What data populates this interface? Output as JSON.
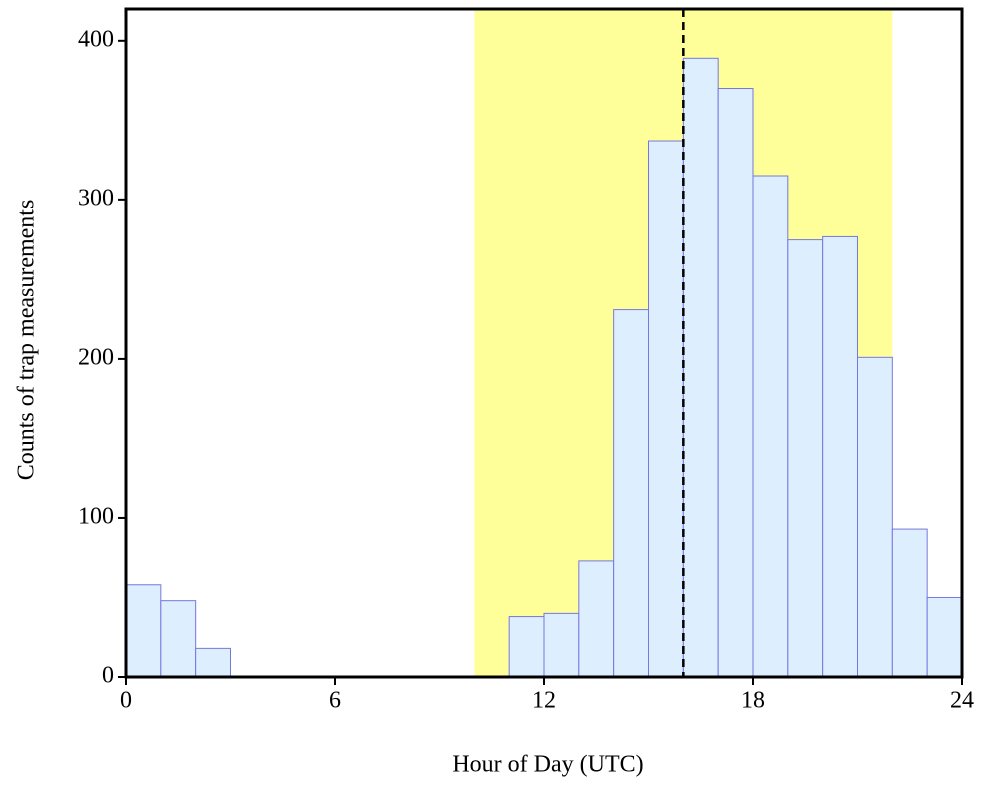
{
  "chart_data": {
    "type": "histogram",
    "x_label": "Hour of Day (UTC)",
    "y_label": "Counts of trap measurements",
    "bins": [
      0,
      1,
      2,
      3,
      4,
      5,
      6,
      7,
      8,
      9,
      10,
      11,
      12,
      13,
      14,
      15,
      16,
      17,
      18,
      19,
      20,
      21,
      22,
      23,
      24
    ],
    "values": [
      58,
      48,
      18,
      0,
      0,
      0,
      0,
      0,
      0,
      0,
      0,
      38,
      40,
      73,
      231,
      337,
      389,
      370,
      315,
      275,
      277,
      201,
      93,
      50
    ],
    "color": "#ddeeff",
    "edge_color": "#7777dd",
    "shaded_span": [
      10,
      22
    ],
    "shaded_color": "#ffff99",
    "vline": 16,
    "vline_color": "#000000",
    "xlim": [
      0,
      24
    ],
    "xticks": [
      0,
      6,
      12,
      18,
      24
    ],
    "ylim": [
      0,
      420
    ],
    "yticks": [
      0,
      100,
      200,
      300,
      400
    ]
  }
}
